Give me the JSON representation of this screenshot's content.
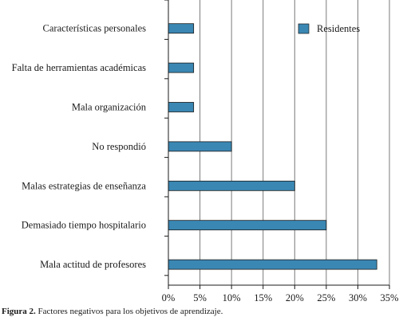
{
  "chart_data": {
    "type": "bar",
    "orientation": "horizontal",
    "categories": [
      "Características personales",
      "Falta de herramientas académicas",
      "Mala organización",
      "No respondió",
      "Malas estrategias de enseñanza",
      "Demasiado tiempo hospitalario",
      "Mala actitud de profesores"
    ],
    "series": [
      {
        "name": "Residentes",
        "values": [
          4,
          4,
          4,
          10,
          20,
          25,
          33
        ],
        "color": "#3a87b3"
      }
    ],
    "x_ticks": [
      "0%",
      "5%",
      "10%",
      "15%",
      "20%",
      "25%",
      "30%",
      "35%"
    ],
    "xlim": [
      0,
      35
    ],
    "grid": "vertical",
    "legend_position": "top-right"
  },
  "caption": {
    "label": "Figura 2.",
    "text": "Factores negativos para los objetivos de aprendizaje."
  }
}
